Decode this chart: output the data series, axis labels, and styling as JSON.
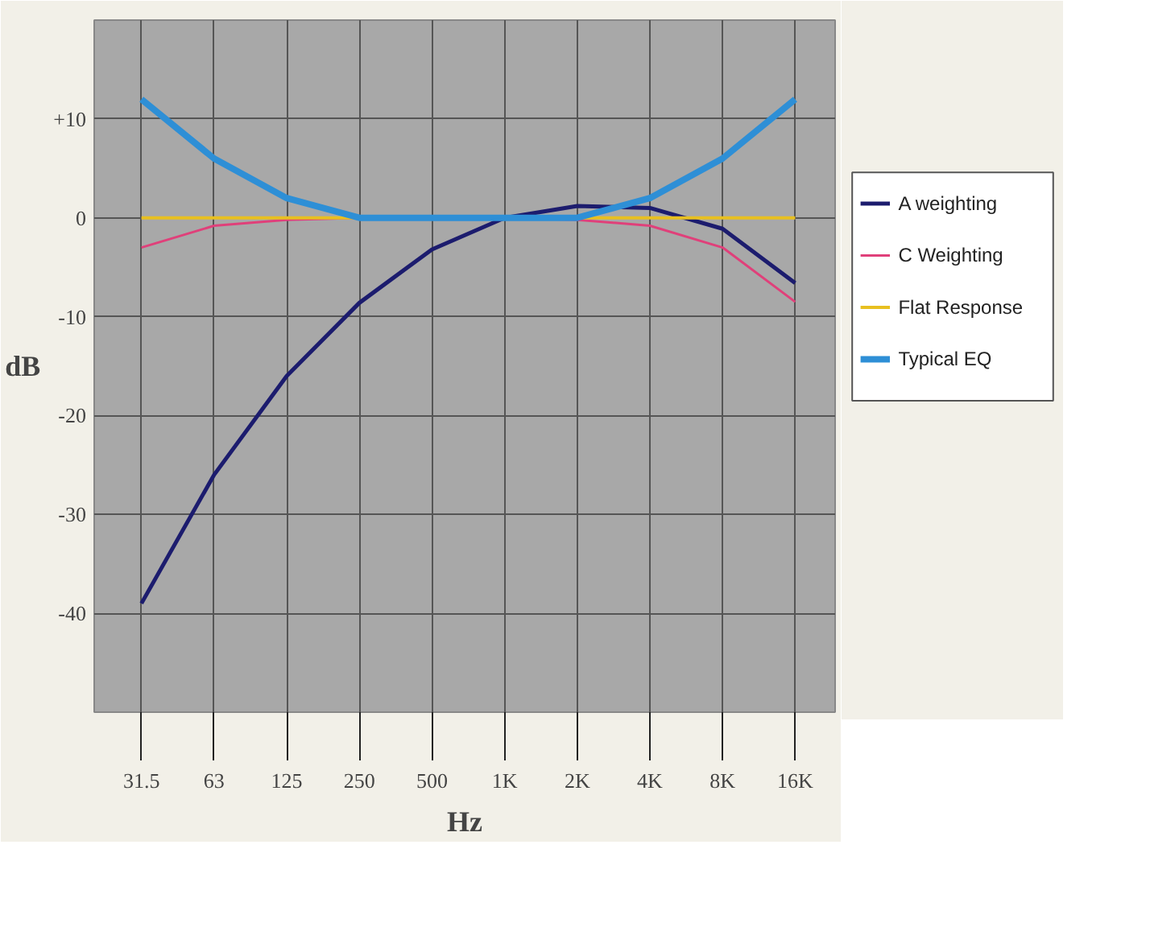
{
  "chart_data": {
    "type": "line",
    "xlabel": "Hz",
    "ylabel": "dB",
    "categories": [
      "31.5",
      "63",
      "125",
      "250",
      "500",
      "1K",
      "2K",
      "4K",
      "8K",
      "16K"
    ],
    "ylim": [
      -50,
      20
    ],
    "yticks": [
      {
        "value": 10,
        "label": "+10"
      },
      0,
      -10,
      -20,
      -30,
      -40
    ],
    "grid": true,
    "legend": "right",
    "marker": "none",
    "line_style": "solid",
    "series": [
      {
        "name": "A weighting",
        "color": "#1c1c6e",
        "values": [
          -39,
          -26,
          -16,
          -8.6,
          -3.2,
          0,
          1.2,
          1,
          -1.1,
          -6.6
        ]
      },
      {
        "name": "C Weighting",
        "color": "#e0407a",
        "values": [
          -3,
          -0.8,
          -0.2,
          0,
          0,
          0,
          -0.2,
          -0.8,
          -3,
          -8.5
        ]
      },
      {
        "name": "Flat Response",
        "color": "#e8c020",
        "values": [
          0,
          0,
          0,
          0,
          0,
          0,
          0,
          0,
          0,
          0
        ]
      },
      {
        "name": "Typical EQ",
        "color": "#2e8fd6",
        "values": [
          12,
          6,
          2,
          0,
          0,
          0,
          0,
          2,
          6,
          12
        ]
      }
    ]
  }
}
